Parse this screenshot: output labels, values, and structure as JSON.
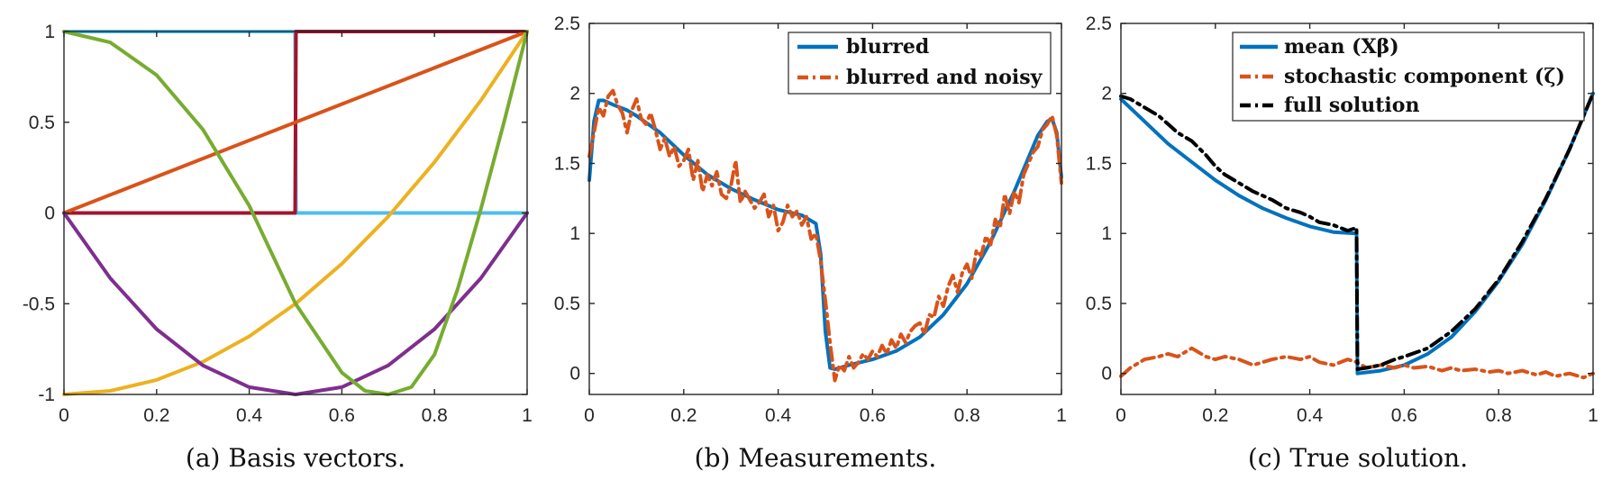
{
  "colors": {
    "matlab_blue": "#0072BD",
    "matlab_orange": "#D95319",
    "matlab_yellow": "#EDB120",
    "matlab_purple": "#7E2F8E",
    "matlab_green": "#77AC30",
    "matlab_lightblue": "#4DBEEE",
    "matlab_darkred": "#A2142F",
    "black": "#000000"
  },
  "chart_data": [
    {
      "type": "line",
      "caption": "(a) Basis vectors.",
      "xlim": [
        0,
        1
      ],
      "ylim": [
        -1,
        1
      ],
      "xticks": [
        0,
        0.2,
        0.4,
        0.6,
        0.8,
        1
      ],
      "xtick_labels": [
        "0",
        "0.2",
        "0.4",
        "0.6",
        "0.8",
        "1"
      ],
      "yticks": [
        -1,
        -0.5,
        0,
        0.5,
        1
      ],
      "ytick_labels": [
        "-1",
        "-0.5",
        "0",
        "0.5",
        "1"
      ],
      "series": [
        {
          "color": "#4DBEEE",
          "style": "solid",
          "x": [
            0,
            0.499,
            0.501,
            1
          ],
          "y": [
            1,
            1,
            0,
            0
          ]
        },
        {
          "color": "#A2142F",
          "style": "solid",
          "x": [
            0,
            0.499,
            0.501,
            1
          ],
          "y": [
            0,
            0,
            1,
            1
          ]
        },
        {
          "color": "#D95319",
          "style": "solid",
          "x": [
            0,
            1
          ],
          "y": [
            0,
            1
          ]
        },
        {
          "color": "#EDB120",
          "style": "solid",
          "x": [
            0,
            0.1,
            0.2,
            0.3,
            0.4,
            0.5,
            0.6,
            0.7,
            0.8,
            0.9,
            1
          ],
          "y": [
            -1,
            -0.98,
            -0.92,
            -0.82,
            -0.68,
            -0.5,
            -0.28,
            -0.02,
            0.28,
            0.62,
            1
          ]
        },
        {
          "color": "#7E2F8E",
          "style": "solid",
          "x": [
            0,
            0.1,
            0.2,
            0.3,
            0.4,
            0.5,
            0.6,
            0.7,
            0.8,
            0.9,
            1
          ],
          "y": [
            0,
            -0.36,
            -0.64,
            -0.84,
            -0.96,
            -1,
            -0.96,
            -0.84,
            -0.64,
            -0.36,
            0
          ]
        },
        {
          "color": "#77AC30",
          "style": "solid",
          "x": [
            0,
            0.1,
            0.2,
            0.3,
            0.4,
            0.5,
            0.6,
            0.65,
            0.7,
            0.75,
            0.8,
            0.85,
            0.9,
            0.95,
            1
          ],
          "y": [
            1,
            0.94,
            0.76,
            0.46,
            0.04,
            -0.5,
            -0.88,
            -0.98,
            -1,
            -0.96,
            -0.78,
            -0.42,
            0.02,
            0.5,
            1
          ]
        }
      ]
    },
    {
      "type": "line",
      "caption": "(b) Measurements.",
      "xlim": [
        0,
        1
      ],
      "ylim": [
        -0.15,
        2.5
      ],
      "xticks": [
        0,
        0.2,
        0.4,
        0.6,
        0.8,
        1
      ],
      "xtick_labels": [
        "0",
        "0.2",
        "0.4",
        "0.6",
        "0.8",
        "1"
      ],
      "yticks": [
        0,
        0.5,
        1,
        1.5,
        2,
        2.5
      ],
      "ytick_labels": [
        "0",
        "0.5",
        "1",
        "1.5",
        "2",
        "2.5"
      ],
      "legend": {
        "position": "top-right",
        "entries": [
          "blurred",
          "blurred and noisy"
        ]
      },
      "series": [
        {
          "name": "blurred",
          "color": "#0072BD",
          "style": "solid",
          "x": [
            0,
            0.01,
            0.02,
            0.03,
            0.05,
            0.08,
            0.1,
            0.15,
            0.2,
            0.25,
            0.3,
            0.35,
            0.4,
            0.45,
            0.48,
            0.49,
            0.5,
            0.51,
            0.52,
            0.55,
            0.6,
            0.65,
            0.7,
            0.75,
            0.8,
            0.85,
            0.9,
            0.95,
            0.97,
            0.98,
            0.99,
            1
          ],
          "y": [
            1.38,
            1.8,
            1.95,
            1.95,
            1.92,
            1.88,
            1.84,
            1.72,
            1.56,
            1.42,
            1.32,
            1.24,
            1.17,
            1.13,
            1.07,
            0.85,
            0.3,
            0.04,
            0.03,
            0.06,
            0.1,
            0.16,
            0.26,
            0.42,
            0.64,
            0.94,
            1.3,
            1.7,
            1.8,
            1.82,
            1.72,
            1.4
          ]
        },
        {
          "name": "blurred and noisy",
          "color": "#D95319",
          "style": "dashdot",
          "x": [
            0,
            0.01,
            0.02,
            0.03,
            0.04,
            0.05,
            0.06,
            0.07,
            0.08,
            0.09,
            0.1,
            0.11,
            0.12,
            0.13,
            0.14,
            0.15,
            0.16,
            0.17,
            0.18,
            0.19,
            0.2,
            0.21,
            0.22,
            0.23,
            0.24,
            0.25,
            0.26,
            0.27,
            0.28,
            0.29,
            0.3,
            0.31,
            0.32,
            0.33,
            0.34,
            0.35,
            0.36,
            0.37,
            0.38,
            0.39,
            0.4,
            0.41,
            0.42,
            0.43,
            0.44,
            0.45,
            0.46,
            0.47,
            0.48,
            0.49,
            0.5,
            0.51,
            0.52,
            0.53,
            0.54,
            0.55,
            0.56,
            0.57,
            0.58,
            0.59,
            0.6,
            0.61,
            0.62,
            0.63,
            0.64,
            0.65,
            0.66,
            0.67,
            0.68,
            0.69,
            0.7,
            0.71,
            0.72,
            0.73,
            0.74,
            0.75,
            0.76,
            0.77,
            0.78,
            0.79,
            0.8,
            0.81,
            0.82,
            0.83,
            0.84,
            0.85,
            0.86,
            0.87,
            0.88,
            0.89,
            0.9,
            0.91,
            0.92,
            0.93,
            0.94,
            0.95,
            0.96,
            0.97,
            0.98,
            0.99,
            1
          ],
          "y": [
            1.55,
            1.72,
            1.9,
            1.84,
            1.98,
            2.02,
            1.92,
            1.86,
            1.72,
            1.88,
            1.96,
            1.82,
            1.78,
            1.86,
            1.74,
            1.6,
            1.68,
            1.55,
            1.62,
            1.48,
            1.52,
            1.6,
            1.38,
            1.52,
            1.3,
            1.42,
            1.34,
            1.44,
            1.28,
            1.25,
            1.34,
            1.52,
            1.22,
            1.3,
            1.24,
            1.18,
            1.22,
            1.28,
            1.12,
            1.2,
            1.02,
            1.08,
            1.2,
            1.12,
            1.16,
            1.06,
            1.12,
            0.96,
            1.0,
            0.8,
            0.52,
            0.22,
            -0.05,
            0.06,
            0.02,
            0.12,
            0.04,
            0.08,
            0.14,
            0.1,
            0.16,
            0.12,
            0.2,
            0.14,
            0.24,
            0.18,
            0.28,
            0.22,
            0.3,
            0.34,
            0.36,
            0.28,
            0.42,
            0.4,
            0.55,
            0.48,
            0.62,
            0.7,
            0.58,
            0.72,
            0.78,
            0.68,
            0.88,
            0.84,
            0.98,
            0.92,
            1.1,
            1.04,
            1.28,
            1.14,
            1.3,
            1.22,
            1.42,
            1.5,
            1.58,
            1.62,
            1.74,
            1.78,
            1.84,
            1.7,
            1.36
          ]
        }
      ]
    },
    {
      "type": "line",
      "caption": "(c) True solution.",
      "xlim": [
        0,
        1
      ],
      "ylim": [
        -0.15,
        2.5
      ],
      "xticks": [
        0,
        0.2,
        0.4,
        0.6,
        0.8,
        1
      ],
      "xtick_labels": [
        "0",
        "0.2",
        "0.4",
        "0.6",
        "0.8",
        "1"
      ],
      "yticks": [
        0,
        0.5,
        1,
        1.5,
        2,
        2.5
      ],
      "ytick_labels": [
        "0",
        "0.5",
        "1",
        "1.5",
        "2",
        "2.5"
      ],
      "legend": {
        "position": "top-right",
        "entries": [
          "mean (Xβ)",
          "stochastic component (ζ)",
          "full solution"
        ]
      },
      "series": [
        {
          "name": "mean (Xβ)",
          "color": "#0072BD",
          "style": "solid",
          "x": [
            0,
            0.05,
            0.1,
            0.15,
            0.2,
            0.25,
            0.3,
            0.35,
            0.4,
            0.45,
            0.499,
            0.501,
            0.55,
            0.6,
            0.65,
            0.7,
            0.75,
            0.8,
            0.85,
            0.9,
            0.95,
            1
          ],
          "y": [
            1.96,
            1.8,
            1.64,
            1.51,
            1.38,
            1.27,
            1.18,
            1.11,
            1.05,
            1.01,
            1.0,
            0.0,
            0.02,
            0.06,
            0.14,
            0.26,
            0.44,
            0.66,
            0.92,
            1.24,
            1.6,
            2.0
          ]
        },
        {
          "name": "stochastic component (ζ)",
          "color": "#D95319",
          "style": "dashdot",
          "x": [
            0,
            0.02,
            0.05,
            0.08,
            0.1,
            0.12,
            0.15,
            0.18,
            0.2,
            0.22,
            0.25,
            0.28,
            0.3,
            0.32,
            0.35,
            0.38,
            0.4,
            0.42,
            0.45,
            0.48,
            0.5,
            0.52,
            0.55,
            0.58,
            0.6,
            0.62,
            0.65,
            0.68,
            0.7,
            0.72,
            0.75,
            0.78,
            0.8,
            0.82,
            0.85,
            0.88,
            0.9,
            0.92,
            0.95,
            0.98,
            1
          ],
          "y": [
            -0.02,
            0.04,
            0.1,
            0.12,
            0.14,
            0.12,
            0.18,
            0.12,
            0.1,
            0.12,
            0.1,
            0.06,
            0.08,
            0.1,
            0.12,
            0.1,
            0.12,
            0.08,
            0.06,
            0.1,
            0.08,
            0.04,
            0.06,
            0.04,
            0.06,
            0.04,
            0.05,
            0.02,
            0.04,
            0.02,
            0.03,
            0.01,
            0.02,
            0.0,
            0.02,
            -0.01,
            0.01,
            -0.02,
            0.0,
            -0.03,
            0.0
          ]
        },
        {
          "name": "full solution",
          "color": "#000000",
          "style": "dashdot",
          "x": [
            0,
            0.02,
            0.05,
            0.08,
            0.1,
            0.12,
            0.15,
            0.18,
            0.2,
            0.22,
            0.25,
            0.28,
            0.3,
            0.32,
            0.35,
            0.38,
            0.4,
            0.42,
            0.45,
            0.48,
            0.499,
            0.501,
            0.52,
            0.55,
            0.58,
            0.6,
            0.65,
            0.7,
            0.75,
            0.8,
            0.85,
            0.9,
            0.95,
            1
          ],
          "y": [
            1.98,
            1.96,
            1.9,
            1.84,
            1.78,
            1.72,
            1.66,
            1.56,
            1.48,
            1.42,
            1.36,
            1.3,
            1.27,
            1.24,
            1.18,
            1.15,
            1.12,
            1.08,
            1.06,
            1.02,
            1.04,
            0.03,
            0.04,
            0.06,
            0.1,
            0.12,
            0.18,
            0.3,
            0.46,
            0.67,
            0.94,
            1.25,
            1.6,
            2.0
          ]
        }
      ]
    }
  ]
}
